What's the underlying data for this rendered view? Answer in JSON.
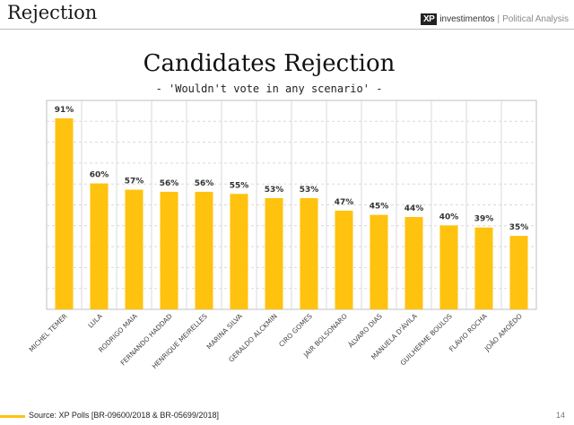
{
  "header": {
    "title": "Rejection",
    "brand_logo": "XP",
    "brand_name": "investimentos",
    "brand_divider": "|",
    "brand_tagline": "Political Analysis"
  },
  "footer": {
    "source": "Source: XP Polls [BR-09600/2018 & BR-05699/2018]",
    "page_number": "14"
  },
  "colors": {
    "bar": "#FFC20E",
    "grid": "#d9d9d9",
    "frame": "#bfbfbf"
  },
  "chart_data": {
    "type": "bar",
    "title": "Candidates Rejection",
    "subtitle": "- 'Wouldn't vote in any scenario' -",
    "xlabel": "",
    "ylabel": "",
    "ylim": [
      0,
      100
    ],
    "grid": true,
    "legend": "none",
    "categories": [
      "MICHEL TEMER",
      "LULA",
      "RODRIGO MAIA",
      "FERNANDO HADDAD",
      "HENRIQUE MEIRELLES",
      "MARINA SILVA",
      "GERALDO ALCKMIN",
      "CIRO GOMES",
      "JAIR BOLSONARO",
      "ÁLVARO DIAS",
      "MANUELA D'ÁVILA",
      "GUILHERME BOULOS",
      "FLÁVIO ROCHA",
      "JOÃO AMOÊDO"
    ],
    "values": [
      91,
      60,
      57,
      56,
      56,
      55,
      53,
      53,
      47,
      45,
      44,
      40,
      39,
      35
    ],
    "value_labels": [
      "91%",
      "60%",
      "57%",
      "56%",
      "56%",
      "55%",
      "53%",
      "53%",
      "47%",
      "45%",
      "44%",
      "40%",
      "39%",
      "35%"
    ]
  }
}
